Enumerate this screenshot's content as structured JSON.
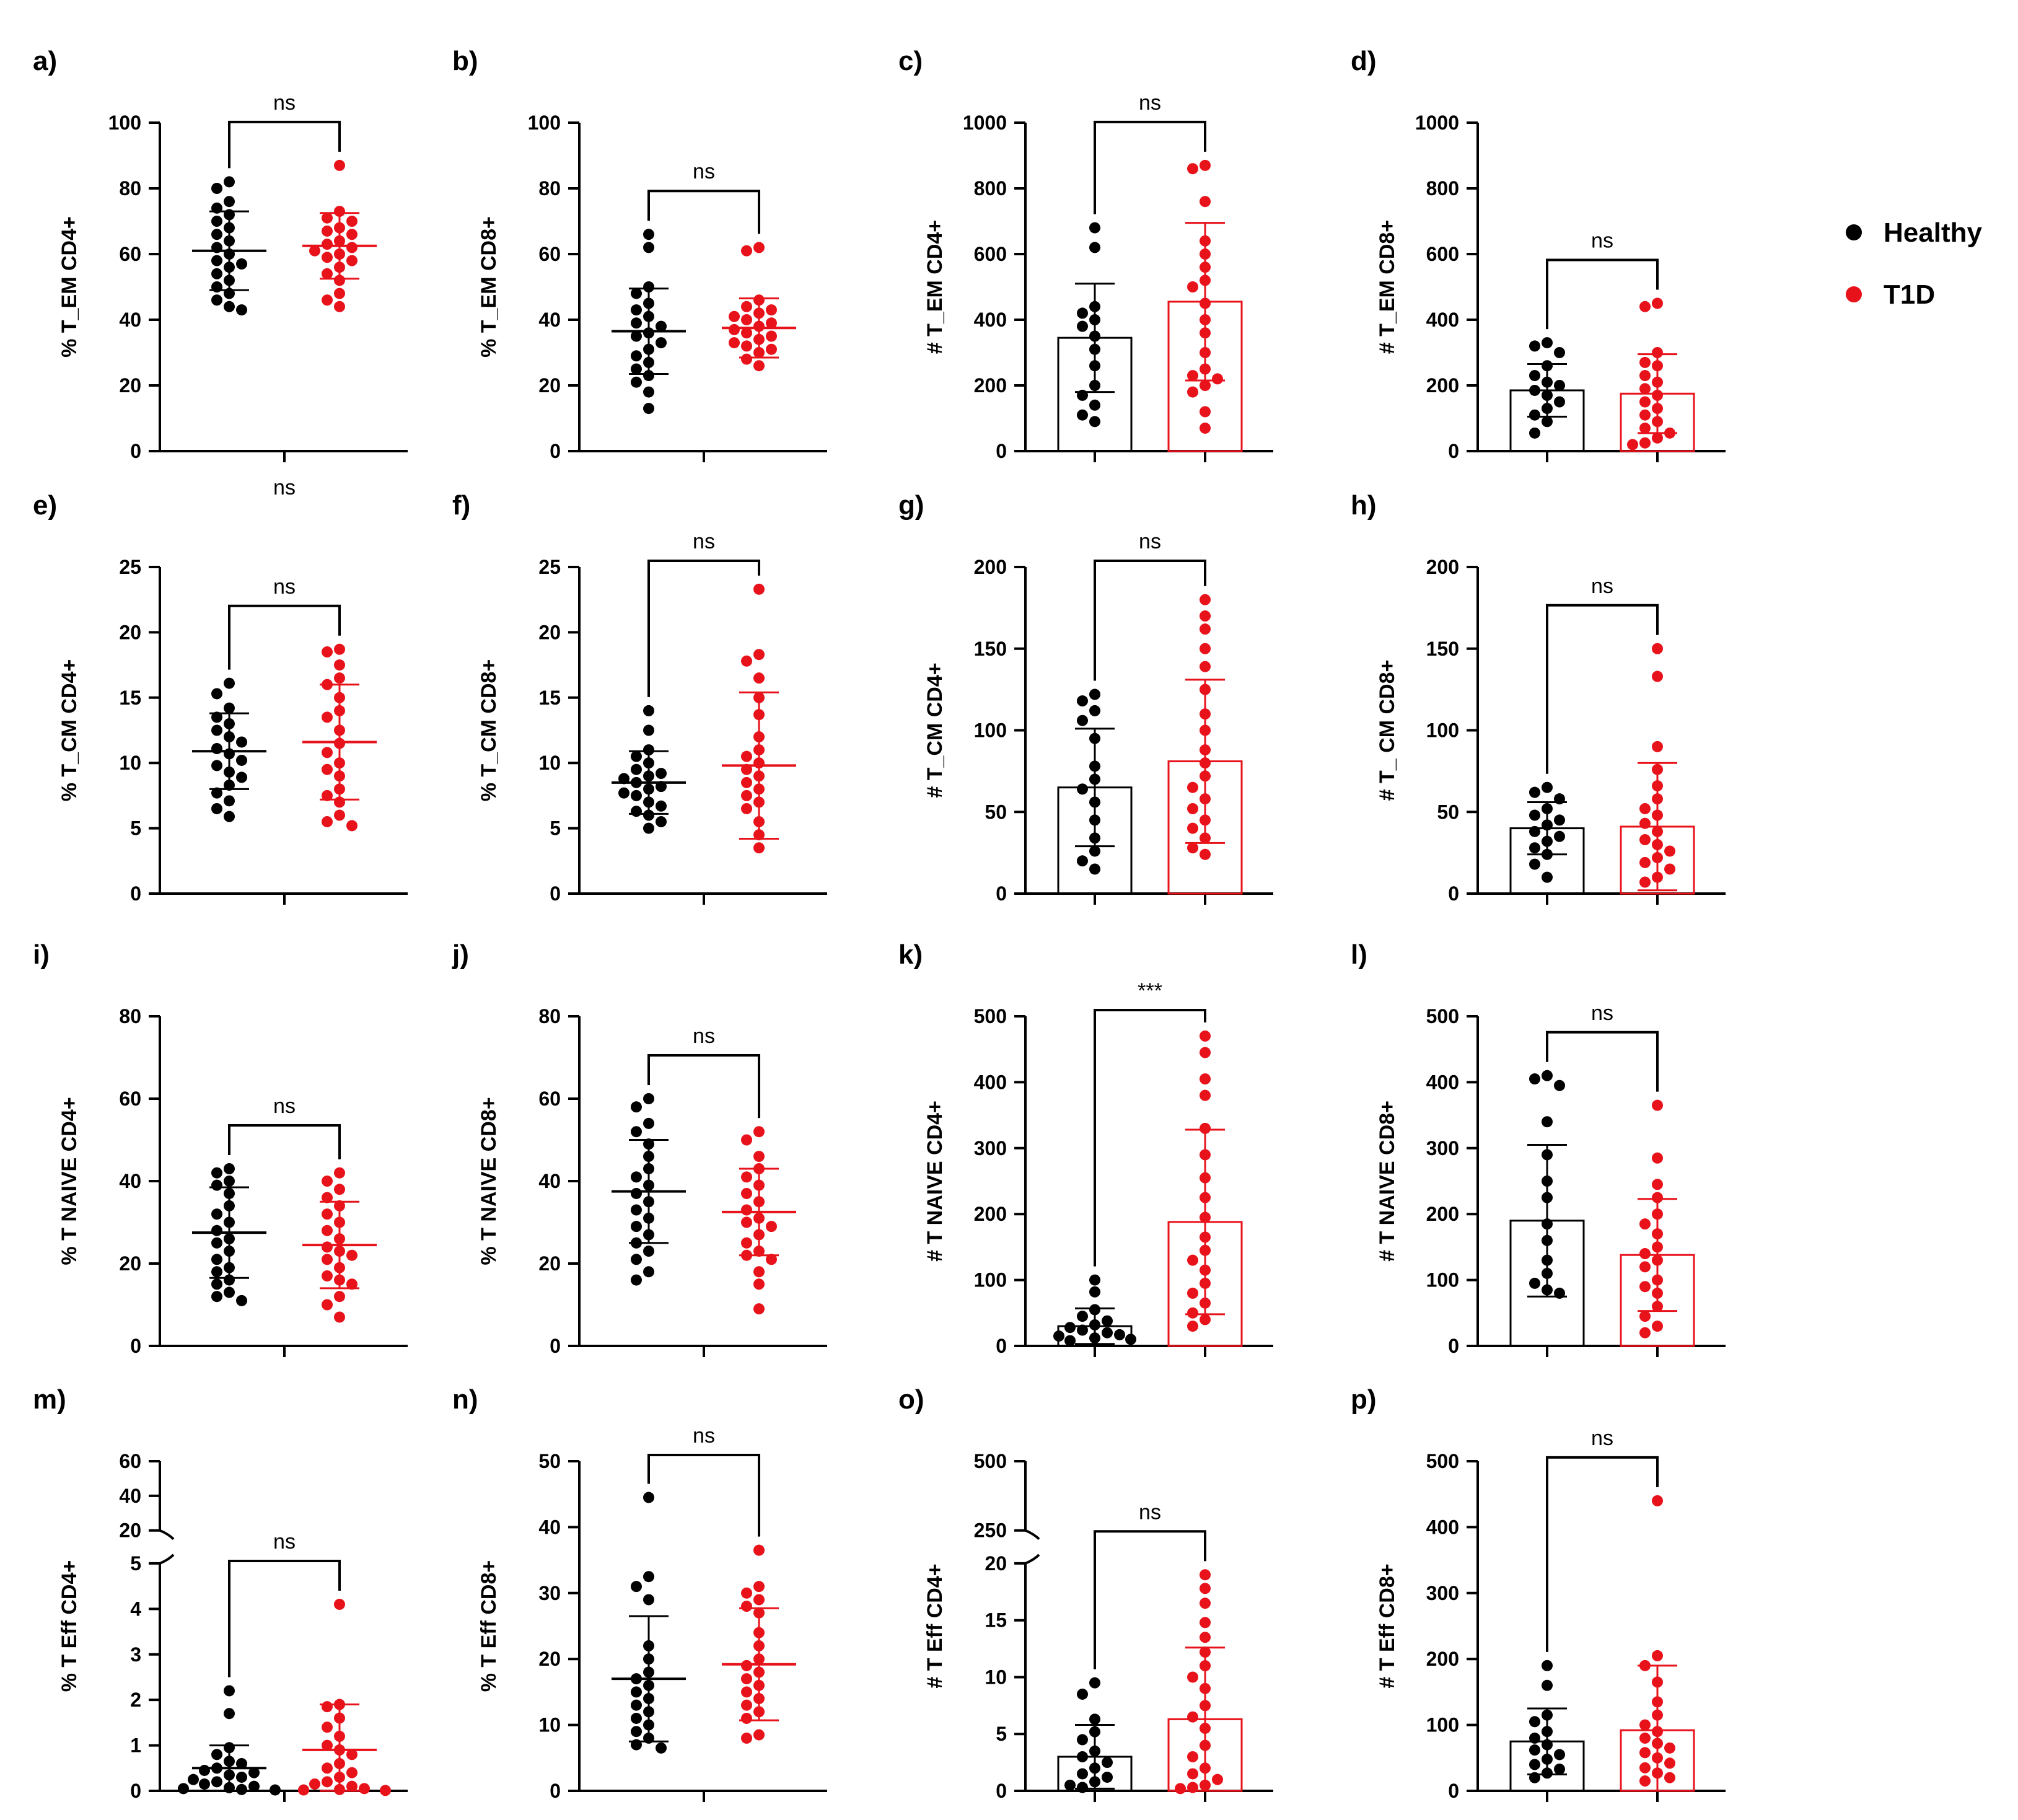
{
  "colors": {
    "healthy": "#000000",
    "t1d": "#e8121b"
  },
  "legend": [
    {
      "label": "Healthy",
      "color": "#000000"
    },
    {
      "label": "T1D",
      "color": "#e8121b"
    }
  ],
  "chart_data": [
    {
      "panel": "a)",
      "type": "scatter",
      "ylabel": "% T_EM  CD4+",
      "ylim": [
        0,
        100
      ],
      "yticks": [
        "0",
        "20",
        "40",
        "60",
        "80",
        "100"
      ],
      "significance": "ns",
      "bottom_text": "ns",
      "groups": [
        {
          "name": "Healthy",
          "mean": 61,
          "sd": 12,
          "values": [
            82,
            80,
            76,
            74,
            72,
            70,
            68,
            66,
            64,
            62,
            60,
            58,
            57,
            56,
            54,
            52,
            50,
            48,
            46,
            44,
            43
          ]
        },
        {
          "name": "T1D",
          "mean": 62.5,
          "sd": 10,
          "values": [
            87,
            73,
            71,
            70,
            68,
            67,
            66,
            64,
            63,
            62,
            61,
            60,
            59,
            58,
            56,
            54,
            52,
            48,
            46,
            44
          ]
        }
      ]
    },
    {
      "panel": "b)",
      "type": "scatter",
      "ylabel": "% T_EM CD8+",
      "ylim": [
        0,
        100
      ],
      "yticks": [
        "0",
        "20",
        "40",
        "60",
        "80",
        "100"
      ],
      "significance": "ns",
      "groups": [
        {
          "name": "Healthy",
          "mean": 36.5,
          "sd": 13,
          "values": [
            66,
            62,
            50,
            48,
            45,
            43,
            41,
            39,
            38,
            36,
            35,
            33,
            31,
            29,
            27,
            25,
            23,
            21,
            18,
            13
          ]
        },
        {
          "name": "T1D",
          "mean": 37.5,
          "sd": 9,
          "values": [
            62,
            61,
            46,
            44,
            43,
            42,
            41,
            40,
            39,
            38,
            37,
            36,
            35,
            34,
            33,
            32,
            31,
            30,
            28,
            26
          ]
        }
      ]
    },
    {
      "panel": "c)",
      "type": "bar",
      "ylabel": "# T_EM  CD4+",
      "ylim": [
        0,
        1000
      ],
      "yticks": [
        "0",
        "200",
        "400",
        "600",
        "800",
        "1000"
      ],
      "significance": "ns",
      "groups": [
        {
          "name": "Healthy",
          "mean": 345,
          "sd": 165,
          "values": [
            680,
            620,
            440,
            420,
            400,
            380,
            350,
            310,
            260,
            200,
            170,
            140,
            110,
            90
          ]
        },
        {
          "name": "T1D",
          "mean": 455,
          "sd": 240,
          "values": [
            870,
            860,
            760,
            640,
            600,
            560,
            520,
            500,
            450,
            400,
            360,
            300,
            250,
            230,
            220,
            200,
            180,
            120,
            70
          ]
        }
      ]
    },
    {
      "panel": "d)",
      "type": "bar",
      "ylabel": "# T_EM  CD8+",
      "ylim": [
        0,
        1000
      ],
      "yticks": [
        "0",
        "200",
        "400",
        "600",
        "800",
        "1000"
      ],
      "significance": "ns",
      "groups": [
        {
          "name": "Healthy",
          "mean": 185,
          "sd": 80,
          "values": [
            330,
            320,
            300,
            260,
            230,
            210,
            200,
            185,
            170,
            150,
            130,
            110,
            90,
            55
          ]
        },
        {
          "name": "T1D",
          "mean": 175,
          "sd": 120,
          "values": [
            450,
            440,
            300,
            270,
            260,
            230,
            210,
            190,
            170,
            150,
            130,
            110,
            90,
            70,
            55,
            40,
            25,
            20
          ]
        }
      ]
    },
    {
      "panel": "e)",
      "type": "scatter",
      "ylabel": "% T_CM  CD4+",
      "ylim": [
        0,
        25
      ],
      "yticks": [
        "0",
        "5",
        "10",
        "15",
        "20",
        "25"
      ],
      "significance": "ns",
      "groups": [
        {
          "name": "Healthy",
          "mean": 10.9,
          "sd": 2.9,
          "values": [
            16.1,
            15.3,
            14.2,
            13.5,
            13,
            12.5,
            12,
            11.6,
            11.1,
            10.7,
            10.2,
            9.8,
            9.3,
            8.9,
            8.3,
            7.7,
            7.1,
            6.5,
            5.9
          ]
        },
        {
          "name": "T1D",
          "mean": 11.6,
          "sd": 4.4,
          "values": [
            18.7,
            18.5,
            17.5,
            16.5,
            16,
            15,
            14,
            13.5,
            12.5,
            11.5,
            10.8,
            10,
            9.5,
            9,
            8,
            7.5,
            7,
            6,
            5.5,
            5.2
          ]
        }
      ]
    },
    {
      "panel": "f)",
      "type": "scatter",
      "ylabel": "% T_CM   CD8+",
      "ylim": [
        0,
        25
      ],
      "yticks": [
        "0",
        "5",
        "10",
        "15",
        "20",
        "25"
      ],
      "significance": "ns",
      "groups": [
        {
          "name": "Healthy",
          "mean": 8.5,
          "sd": 2.4,
          "values": [
            14,
            12.5,
            11,
            10.5,
            10,
            9.5,
            9.2,
            9,
            8.8,
            8.5,
            8.2,
            8,
            7.7,
            7.5,
            7,
            6.7,
            6.3,
            6,
            5.5,
            5
          ]
        },
        {
          "name": "T1D",
          "mean": 9.8,
          "sd": 5.6,
          "values": [
            23.3,
            18.3,
            17.8,
            16.5,
            15,
            13.7,
            12,
            11,
            10.5,
            10,
            9.5,
            9,
            8.5,
            8,
            7.5,
            7,
            6.5,
            5.5,
            4.5,
            3.5
          ]
        }
      ]
    },
    {
      "panel": "g)",
      "type": "bar",
      "ylabel": "# T_CM   CD4+",
      "ylim": [
        0,
        200
      ],
      "yticks": [
        "0",
        "50",
        "100",
        "150",
        "200"
      ],
      "significance": "ns",
      "groups": [
        {
          "name": "Healthy",
          "mean": 65,
          "sd": 36,
          "values": [
            122,
            118,
            112,
            106,
            95,
            78,
            70,
            64,
            56,
            45,
            34,
            26,
            20,
            15
          ]
        },
        {
          "name": "T1D",
          "mean": 81,
          "sd": 50,
          "values": [
            180,
            170,
            162,
            150,
            139,
            125,
            110,
            100,
            88,
            80,
            72,
            65,
            58,
            52,
            45,
            40,
            34,
            28,
            24
          ]
        }
      ]
    },
    {
      "panel": "h)",
      "type": "bar",
      "ylabel": "# T_ CM CD8+",
      "ylim": [
        0,
        200
      ],
      "yticks": [
        "0",
        "50",
        "100",
        "150",
        "200"
      ],
      "significance": "ns",
      "groups": [
        {
          "name": "Healthy",
          "mean": 40,
          "sd": 16,
          "values": [
            65,
            62,
            58,
            52,
            48,
            45,
            42,
            38,
            35,
            32,
            28,
            24,
            18,
            10
          ]
        },
        {
          "name": "T1D",
          "mean": 41,
          "sd": 39,
          "values": [
            150,
            133,
            90,
            76,
            66,
            58,
            52,
            48,
            43,
            38,
            33,
            30,
            26,
            22,
            19,
            15,
            10,
            7
          ]
        }
      ]
    },
    {
      "panel": "i)",
      "type": "scatter",
      "ylabel": "% T  NAIVE CD4+",
      "ylim": [
        0,
        80
      ],
      "yticks": [
        "0",
        "20",
        "40",
        "60",
        "80"
      ],
      "significance": "ns",
      "groups": [
        {
          "name": "Healthy",
          "mean": 27.5,
          "sd": 11,
          "values": [
            43,
            42,
            40,
            39,
            37,
            34,
            32,
            30,
            28,
            26,
            25,
            23,
            21,
            19,
            18,
            16,
            15,
            13,
            12,
            11
          ]
        },
        {
          "name": "T1D",
          "mean": 24.5,
          "sd": 10.5,
          "values": [
            42,
            40,
            38,
            36,
            34,
            32,
            30,
            28,
            26,
            24,
            23,
            22,
            21,
            19,
            17,
            16,
            15,
            12,
            10,
            7
          ]
        }
      ]
    },
    {
      "panel": "j)",
      "type": "scatter",
      "ylabel": "% T NAIVE CD8+",
      "ylim": [
        0,
        80
      ],
      "yticks": [
        "0",
        "20",
        "40",
        "60",
        "80"
      ],
      "significance": "ns",
      "groups": [
        {
          "name": "Healthy",
          "mean": 37.5,
          "sd": 12.5,
          "values": [
            60,
            58,
            54,
            52,
            49,
            46,
            43,
            41,
            39,
            37,
            35,
            33,
            31,
            29,
            27,
            25,
            23,
            21,
            18,
            16
          ]
        },
        {
          "name": "T1D",
          "mean": 32.5,
          "sd": 10.5,
          "values": [
            52,
            50,
            46,
            43,
            41,
            39,
            37,
            35,
            33,
            31,
            30,
            29,
            27,
            25,
            23,
            22,
            21,
            18,
            15,
            9
          ]
        }
      ]
    },
    {
      "panel": "k)",
      "type": "bar",
      "ylabel": "# T NAIVE CD4+",
      "ylim": [
        0,
        500
      ],
      "yticks": [
        "0",
        "100",
        "200",
        "300",
        "400",
        "500"
      ],
      "significance": "***",
      "groups": [
        {
          "name": "Healthy",
          "mean": 30,
          "sd": 27,
          "values": [
            100,
            82,
            55,
            45,
            38,
            32,
            28,
            24,
            20,
            17,
            15,
            12,
            10,
            8
          ]
        },
        {
          "name": "T1D",
          "mean": 188,
          "sd": 140,
          "values": [
            470,
            445,
            405,
            380,
            330,
            290,
            255,
            225,
            195,
            165,
            145,
            130,
            115,
            95,
            80,
            65,
            50,
            40,
            30
          ]
        }
      ]
    },
    {
      "panel": "l)",
      "type": "bar",
      "ylabel": "# T NAIVE CD8+",
      "ylim": [
        0,
        500
      ],
      "yticks": [
        "0",
        "100",
        "200",
        "300",
        "400",
        "500"
      ],
      "significance": "ns",
      "groups": [
        {
          "name": "Healthy",
          "mean": 190,
          "sd": 115,
          "values": [
            410,
            405,
            395,
            340,
            290,
            250,
            225,
            185,
            160,
            130,
            110,
            95,
            85,
            80
          ]
        },
        {
          "name": "T1D",
          "mean": 138,
          "sd": 85,
          "values": [
            365,
            285,
            245,
            225,
            200,
            185,
            170,
            150,
            140,
            130,
            120,
            100,
            90,
            80,
            60,
            45,
            30,
            20
          ]
        }
      ]
    },
    {
      "panel": "m)",
      "type": "scatter",
      "ylabel": "% T Eff CD4+",
      "ylim": [
        0,
        60
      ],
      "yticks": [
        "0",
        "1",
        "2",
        "3",
        "4",
        "5",
        "20",
        "40",
        "60"
      ],
      "axis_break": [
        5,
        20
      ],
      "significance": "ns",
      "groups": [
        {
          "name": "Healthy",
          "mean": 0.5,
          "sd": 0.5,
          "values": [
            2.2,
            1.7,
            0.95,
            0.8,
            0.65,
            0.6,
            0.5,
            0.45,
            0.4,
            0.35,
            0.3,
            0.25,
            0.2,
            0.15,
            0.1,
            0.07,
            0.05,
            0.03,
            0.02
          ]
        },
        {
          "name": "T1D",
          "mean": 0.9,
          "sd": 1.0,
          "values": [
            4.1,
            1.9,
            1.85,
            1.6,
            1.4,
            1.2,
            1.0,
            0.9,
            0.8,
            0.6,
            0.5,
            0.4,
            0.3,
            0.2,
            0.15,
            0.1,
            0.05,
            0.03,
            0.02,
            0.01
          ]
        }
      ]
    },
    {
      "panel": "n)",
      "type": "scatter",
      "ylabel": "% T Eff CD8+",
      "ylim": [
        0,
        50
      ],
      "yticks": [
        "0",
        "10",
        "20",
        "30",
        "40",
        "50"
      ],
      "significance": "ns",
      "groups": [
        {
          "name": "Healthy",
          "mean": 17,
          "sd": 9.5,
          "values": [
            44.5,
            32.5,
            31,
            29,
            22,
            20,
            18,
            17,
            16,
            15,
            14,
            13,
            12,
            11,
            10,
            9,
            8,
            7,
            6.5
          ]
        },
        {
          "name": "T1D",
          "mean": 19.2,
          "sd": 8.5,
          "values": [
            36.5,
            31,
            30,
            29,
            28,
            27,
            24,
            22,
            20,
            19,
            18,
            17,
            16,
            15,
            14,
            13,
            12,
            11,
            8.5,
            8
          ]
        }
      ]
    },
    {
      "panel": "o)",
      "type": "bar",
      "ylabel": "# T Eff CD4+",
      "ylim": [
        0,
        500
      ],
      "yticks": [
        "0",
        "5",
        "10",
        "15",
        "20",
        "250",
        "500"
      ],
      "axis_break": [
        20,
        250
      ],
      "significance": "ns",
      "groups": [
        {
          "name": "Healthy",
          "mean": 3,
          "sd": 2.8,
          "values": [
            9.5,
            8.5,
            6.3,
            5.2,
            4.5,
            3.5,
            3,
            2.5,
            2,
            1.5,
            1.2,
            0.8,
            0.5,
            0.3
          ]
        },
        {
          "name": "T1D",
          "mean": 6.3,
          "sd": 6.3,
          "values": [
            19,
            17.8,
            16.5,
            14.8,
            13.5,
            12.2,
            11,
            10,
            9,
            7.5,
            6.5,
            5.5,
            4,
            3,
            2,
            1.5,
            1,
            0.5,
            0.3,
            0.2
          ]
        }
      ]
    },
    {
      "panel": "p)",
      "type": "bar",
      "ylabel": "# T Eff  CD8+",
      "ylim": [
        0,
        500
      ],
      "yticks": [
        "0",
        "100",
        "200",
        "300",
        "400",
        "500"
      ],
      "significance": "ns",
      "groups": [
        {
          "name": "Healthy",
          "mean": 75,
          "sd": 50,
          "values": [
            190,
            160,
            115,
            105,
            90,
            80,
            70,
            62,
            55,
            48,
            40,
            33,
            27,
            20
          ]
        },
        {
          "name": "T1D",
          "mean": 92,
          "sd": 98,
          "values": [
            440,
            205,
            190,
            165,
            135,
            115,
            100,
            90,
            80,
            72,
            65,
            58,
            50,
            42,
            35,
            27,
            20,
            15
          ]
        }
      ]
    }
  ]
}
